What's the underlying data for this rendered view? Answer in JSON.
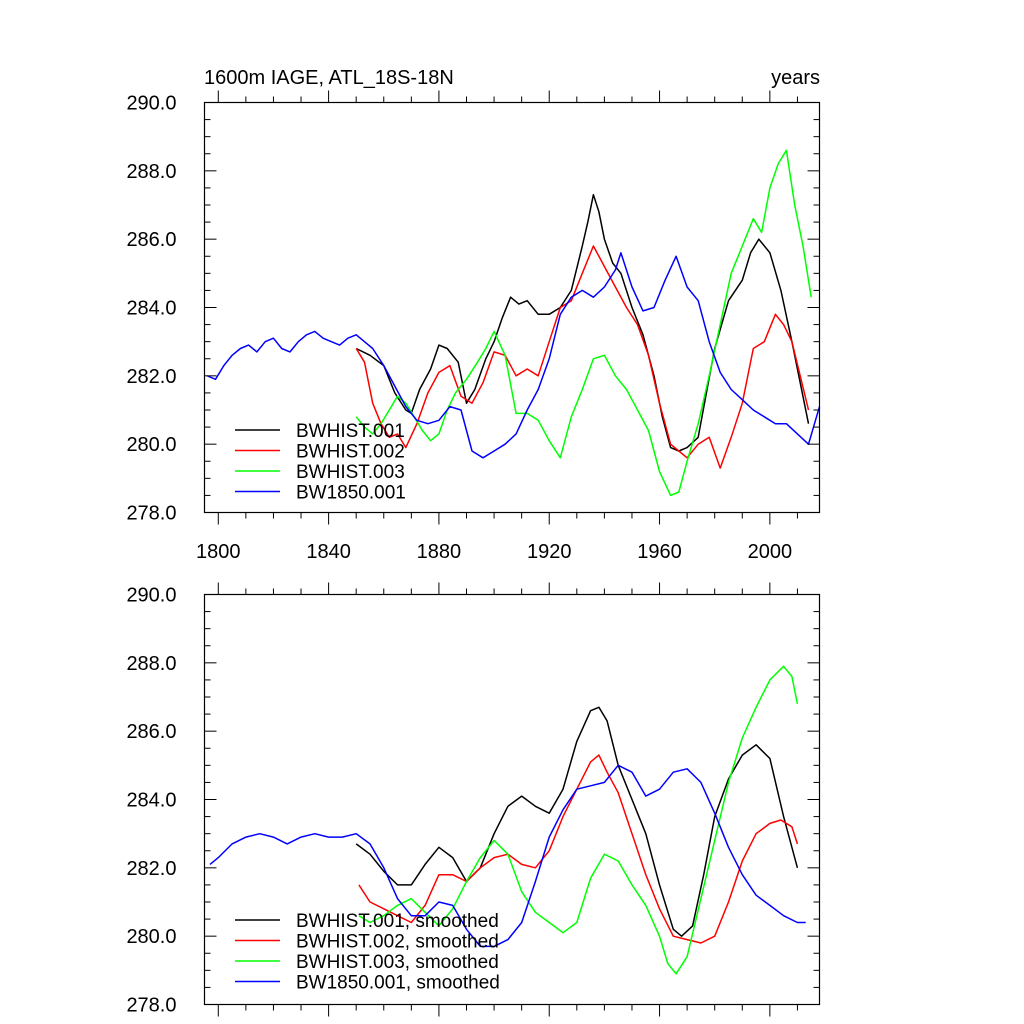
{
  "chart_data": [
    {
      "type": "line",
      "title": "1600m IAGE, ATL_18S-18N",
      "units": "years",
      "xlabel": "",
      "ylabel": "",
      "xlim": [
        1795,
        2018
      ],
      "ylim": [
        278,
        290
      ],
      "xticks": [
        1800,
        1840,
        1880,
        1920,
        1960,
        2000
      ],
      "yticks": [
        278,
        280,
        282,
        284,
        286,
        288,
        290
      ],
      "yticklabels": [
        "278.0",
        "280.0",
        "282.0",
        "284.0",
        "286.0",
        "288.0",
        "290.0"
      ],
      "xticklabels": [
        "1800",
        "1840",
        "1880",
        "1920",
        "1960",
        "2000"
      ],
      "legend_position": "lower-left",
      "series": [
        {
          "name": "BWHIST.001",
          "color": "#000000",
          "x": [
            1850,
            1855,
            1860,
            1864,
            1868,
            1870,
            1873,
            1877,
            1880,
            1883,
            1887,
            1890,
            1893,
            1897,
            1900,
            1903,
            1906,
            1909,
            1912,
            1916,
            1920,
            1924,
            1928,
            1932,
            1934,
            1936,
            1938,
            1940,
            1943,
            1946,
            1950,
            1954,
            1958,
            1961,
            1964,
            1967,
            1970,
            1974,
            1977,
            1980,
            1985,
            1990,
            1993,
            1996,
            2000,
            2004,
            2008,
            2011,
            2014
          ],
          "y": [
            282.8,
            282.6,
            282.3,
            281.5,
            281.0,
            280.9,
            281.6,
            282.2,
            282.9,
            282.8,
            282.4,
            281.2,
            281.6,
            282.5,
            283.0,
            283.7,
            284.3,
            284.1,
            284.2,
            283.8,
            283.8,
            284.0,
            284.5,
            285.8,
            286.5,
            287.3,
            286.8,
            286.0,
            285.3,
            285.0,
            284.0,
            283.2,
            282.0,
            280.8,
            279.9,
            279.8,
            279.9,
            280.2,
            281.5,
            282.8,
            284.2,
            284.8,
            285.6,
            286.0,
            285.6,
            284.5,
            283.0,
            281.8,
            280.6
          ]
        },
        {
          "name": "BWHIST.002",
          "color": "#ff0000",
          "x": [
            1850,
            1853,
            1856,
            1859,
            1862,
            1865,
            1868,
            1872,
            1876,
            1880,
            1884,
            1888,
            1892,
            1896,
            1900,
            1904,
            1908,
            1912,
            1916,
            1920,
            1924,
            1928,
            1932,
            1936,
            1940,
            1944,
            1948,
            1952,
            1956,
            1960,
            1964,
            1967,
            1970,
            1974,
            1978,
            1982,
            1986,
            1990,
            1994,
            1998,
            2002,
            2005,
            2008,
            2011,
            2014
          ],
          "y": [
            282.8,
            282.4,
            281.2,
            280.6,
            280.2,
            280.3,
            279.9,
            280.6,
            281.5,
            282.1,
            282.3,
            281.4,
            281.2,
            281.8,
            282.7,
            282.6,
            282.0,
            282.2,
            282.0,
            283.0,
            284.0,
            284.2,
            285.0,
            285.8,
            285.2,
            284.6,
            284.0,
            283.5,
            282.6,
            281.2,
            280.0,
            279.8,
            279.6,
            280.0,
            280.2,
            279.3,
            280.2,
            281.2,
            282.8,
            283.0,
            283.8,
            283.5,
            283.0,
            282.0,
            281.0
          ]
        },
        {
          "name": "BWHIST.003",
          "color": "#00ff00",
          "x": [
            1850,
            1853,
            1856,
            1859,
            1862,
            1865,
            1868,
            1871,
            1874,
            1877,
            1880,
            1883,
            1886,
            1890,
            1894,
            1897,
            1900,
            1904,
            1908,
            1912,
            1916,
            1920,
            1924,
            1928,
            1932,
            1936,
            1940,
            1944,
            1948,
            1952,
            1956,
            1960,
            1964,
            1967,
            1970,
            1974,
            1978,
            1982,
            1986,
            1990,
            1994,
            1997,
            2000,
            2003,
            2006,
            2009,
            2012,
            2015
          ],
          "y": [
            280.8,
            280.5,
            280.3,
            280.6,
            281.0,
            281.4,
            281.2,
            280.8,
            280.4,
            280.1,
            280.3,
            281.0,
            281.5,
            281.9,
            282.4,
            282.8,
            283.3,
            282.6,
            280.9,
            280.9,
            280.7,
            280.1,
            279.6,
            280.8,
            281.6,
            282.5,
            282.6,
            282.0,
            281.6,
            281.0,
            280.4,
            279.2,
            278.5,
            278.6,
            279.5,
            280.6,
            282.0,
            283.5,
            285.0,
            285.8,
            286.6,
            286.2,
            287.5,
            288.2,
            288.6,
            287.0,
            285.8,
            284.3
          ]
        },
        {
          "name": "BW1850.001",
          "color": "#0000ff",
          "x": [
            1796,
            1799,
            1802,
            1805,
            1808,
            1811,
            1814,
            1817,
            1820,
            1823,
            1826,
            1829,
            1832,
            1835,
            1838,
            1841,
            1844,
            1847,
            1850,
            1853,
            1856,
            1860,
            1864,
            1868,
            1872,
            1876,
            1880,
            1884,
            1888,
            1892,
            1896,
            1900,
            1904,
            1908,
            1912,
            1916,
            1920,
            1924,
            1928,
            1932,
            1936,
            1940,
            1944,
            1946,
            1950,
            1954,
            1958,
            1962,
            1966,
            1970,
            1974,
            1978,
            1982,
            1986,
            1990,
            1994,
            1998,
            2002,
            2006,
            2010,
            2014,
            2018
          ],
          "y": [
            282.0,
            281.9,
            282.3,
            282.6,
            282.8,
            282.9,
            282.7,
            283.0,
            283.1,
            282.8,
            282.7,
            283.0,
            283.2,
            283.3,
            283.1,
            283.0,
            282.9,
            283.1,
            283.2,
            283.0,
            282.8,
            282.3,
            281.7,
            281.1,
            280.7,
            280.6,
            280.7,
            281.1,
            281.0,
            279.8,
            279.6,
            279.8,
            280.0,
            280.3,
            281.0,
            281.6,
            282.5,
            283.8,
            284.3,
            284.5,
            284.3,
            284.6,
            285.1,
            285.6,
            284.6,
            283.9,
            284.0,
            284.8,
            285.5,
            284.6,
            284.2,
            283.0,
            282.1,
            281.6,
            281.3,
            281.0,
            280.8,
            280.6,
            280.6,
            280.3,
            280.0,
            281.1
          ]
        }
      ]
    },
    {
      "type": "line",
      "title": "",
      "xlabel": "",
      "ylabel": "",
      "xlim": [
        1795,
        2018
      ],
      "ylim": [
        278,
        290
      ],
      "xticks": [
        1800,
        1840,
        1880,
        1920,
        1960,
        2000
      ],
      "yticks": [
        278,
        280,
        282,
        284,
        286,
        288,
        290
      ],
      "yticklabels": [
        "278.0",
        "280.0",
        "282.0",
        "284.0",
        "286.0",
        "288.0",
        "290.0"
      ],
      "legend_position": "lower-left",
      "series": [
        {
          "name": "BWHIST.001, smoothed",
          "color": "#000000",
          "x": [
            1850,
            1855,
            1860,
            1865,
            1870,
            1875,
            1880,
            1885,
            1890,
            1895,
            1900,
            1905,
            1910,
            1915,
            1920,
            1925,
            1930,
            1935,
            1938,
            1941,
            1945,
            1950,
            1955,
            1960,
            1965,
            1968,
            1972,
            1976,
            1980,
            1985,
            1990,
            1995,
            2000,
            2005,
            2010
          ],
          "y": [
            282.7,
            282.4,
            281.9,
            281.5,
            281.5,
            282.1,
            282.6,
            282.3,
            281.6,
            282.0,
            283.0,
            283.8,
            284.1,
            283.8,
            283.6,
            284.3,
            285.7,
            286.6,
            286.7,
            286.3,
            285.0,
            284.0,
            283.0,
            281.5,
            280.2,
            280.0,
            280.3,
            281.8,
            283.5,
            284.6,
            285.3,
            285.6,
            285.2,
            283.5,
            282.0
          ]
        },
        {
          "name": "BWHIST.002, smoothed",
          "color": "#ff0000",
          "x": [
            1851,
            1855,
            1860,
            1865,
            1870,
            1875,
            1880,
            1885,
            1890,
            1895,
            1900,
            1905,
            1910,
            1915,
            1920,
            1925,
            1930,
            1935,
            1938,
            1941,
            1945,
            1950,
            1955,
            1960,
            1965,
            1970,
            1975,
            1980,
            1985,
            1990,
            1995,
            2000,
            2004,
            2008,
            2010
          ],
          "y": [
            281.5,
            281.0,
            280.8,
            280.6,
            280.4,
            280.9,
            281.8,
            281.8,
            281.6,
            282.0,
            282.3,
            282.4,
            282.1,
            282.0,
            282.5,
            283.5,
            284.3,
            285.1,
            285.3,
            284.8,
            284.2,
            283.0,
            281.8,
            280.8,
            280.0,
            279.9,
            279.8,
            280.0,
            281.0,
            282.2,
            283.0,
            283.3,
            283.4,
            283.2,
            282.7
          ]
        },
        {
          "name": "BWHIST.003, smoothed",
          "color": "#00ff00",
          "x": [
            1851,
            1855,
            1860,
            1865,
            1870,
            1875,
            1880,
            1885,
            1890,
            1895,
            1900,
            1905,
            1910,
            1915,
            1920,
            1925,
            1930,
            1935,
            1940,
            1945,
            1950,
            1955,
            1960,
            1963,
            1966,
            1970,
            1975,
            1980,
            1985,
            1990,
            1995,
            2000,
            2005,
            2008,
            2010
          ],
          "y": [
            280.6,
            280.4,
            280.6,
            280.9,
            281.1,
            280.7,
            280.3,
            280.8,
            281.6,
            282.3,
            282.8,
            282.4,
            281.3,
            280.7,
            280.4,
            280.1,
            280.4,
            281.7,
            282.4,
            282.2,
            281.5,
            280.9,
            280.0,
            279.2,
            278.9,
            279.4,
            281.1,
            282.8,
            284.5,
            285.8,
            286.7,
            287.5,
            287.9,
            287.6,
            286.8
          ]
        },
        {
          "name": "BW1850.001, smoothed",
          "color": "#0000ff",
          "x": [
            1797,
            1800,
            1805,
            1810,
            1815,
            1820,
            1825,
            1830,
            1835,
            1840,
            1845,
            1850,
            1855,
            1860,
            1865,
            1870,
            1875,
            1880,
            1885,
            1890,
            1895,
            1900,
            1905,
            1910,
            1915,
            1920,
            1925,
            1930,
            1935,
            1940,
            1945,
            1950,
            1955,
            1960,
            1965,
            1970,
            1975,
            1980,
            1985,
            1990,
            1995,
            2000,
            2005,
            2010,
            2013
          ],
          "y": [
            282.1,
            282.3,
            282.7,
            282.9,
            283.0,
            282.9,
            282.7,
            282.9,
            283.0,
            282.9,
            282.9,
            283.0,
            282.7,
            282.0,
            281.1,
            280.6,
            280.6,
            281.0,
            280.9,
            280.2,
            279.7,
            279.7,
            279.9,
            280.4,
            281.6,
            282.9,
            283.7,
            284.3,
            284.4,
            284.5,
            285.0,
            284.8,
            284.1,
            284.3,
            284.8,
            284.9,
            284.5,
            283.6,
            282.6,
            281.8,
            281.2,
            280.9,
            280.6,
            280.4,
            280.4
          ]
        }
      ]
    }
  ]
}
